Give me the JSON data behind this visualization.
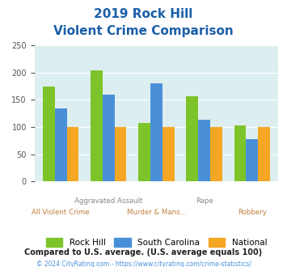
{
  "title_line1": "2019 Rock Hill",
  "title_line2": "Violent Crime Comparison",
  "rock_hill": [
    175,
    204,
    107,
    157,
    103
  ],
  "south_carolina": [
    135,
    159,
    181,
    114,
    78
  ],
  "national": [
    100,
    100,
    100,
    100,
    100
  ],
  "color_rock_hill": "#7dc42a",
  "color_sc": "#4a90d9",
  "color_national": "#f5a623",
  "ylim": [
    0,
    250
  ],
  "yticks": [
    0,
    50,
    100,
    150,
    200,
    250
  ],
  "bg_color": "#ddeef0",
  "title_color": "#1a5fa8",
  "top_labels": [
    "",
    "Aggravated Assault",
    "",
    "Rape",
    ""
  ],
  "bottom_labels": [
    "All Violent Crime",
    "",
    "Murder & Mans...",
    "",
    "Robbery"
  ],
  "top_label_color": "#888888",
  "bot_label_color": "#c08040",
  "note_text": "Compared to U.S. average. (U.S. average equals 100)",
  "note_color": "#222222",
  "footer_text": "© 2024 CityRating.com - https://www.cityrating.com/crime-statistics/",
  "footer_color": "#4a90d9",
  "legend_labels": [
    "Rock Hill",
    "South Carolina",
    "National"
  ]
}
